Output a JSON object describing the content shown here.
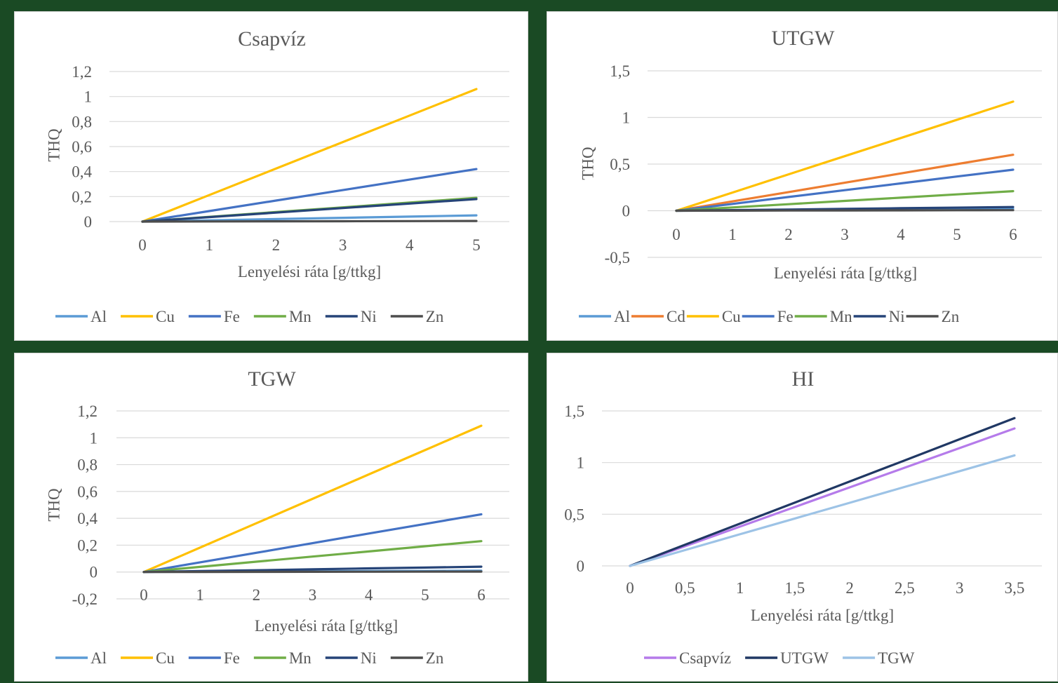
{
  "chart_data": [
    {
      "type": "line",
      "title": "Csapvíz",
      "xlabel": "Lenyelési ráta [g/ttkg]",
      "ylabel": "THQ",
      "categories": [
        "0",
        "1",
        "2",
        "3",
        "4",
        "5"
      ],
      "ylim": [
        0,
        1.2
      ],
      "yticks": [
        "0",
        "0,2",
        "0,4",
        "0,6",
        "0,8",
        "1",
        "1,2"
      ],
      "grid": true,
      "legend": "bottom",
      "series": [
        {
          "name": "Al",
          "color": "#5b9bd5",
          "values": [
            0,
            0.01,
            0.02,
            0.03,
            0.04,
            0.05
          ]
        },
        {
          "name": "Cu",
          "color": "#ffc000",
          "values": [
            0,
            0.212,
            0.424,
            0.636,
            0.848,
            1.06
          ]
        },
        {
          "name": "Fe",
          "color": "#4472c4",
          "values": [
            0,
            0.084,
            0.168,
            0.252,
            0.336,
            0.42
          ]
        },
        {
          "name": "Mn",
          "color": "#70ad47",
          "values": [
            0,
            0.038,
            0.076,
            0.114,
            0.152,
            0.19
          ]
        },
        {
          "name": "Ni",
          "color": "#264478",
          "values": [
            0,
            0.036,
            0.072,
            0.108,
            0.144,
            0.18
          ]
        },
        {
          "name": "Zn",
          "color": "#4d4d4d",
          "values": [
            0,
            0.001,
            0.002,
            0.003,
            0.004,
            0.005
          ]
        }
      ]
    },
    {
      "type": "line",
      "title": "UTGW",
      "xlabel": "Lenyelési ráta [g/ttkg]",
      "ylabel": "THQ",
      "categories": [
        "0",
        "1",
        "2",
        "3",
        "4",
        "5",
        "6"
      ],
      "ylim": [
        -0.5,
        1.5
      ],
      "yticks": [
        "-0,5",
        "0",
        "0,5",
        "1",
        "1,5"
      ],
      "grid": true,
      "legend": "bottom",
      "series": [
        {
          "name": "Al",
          "color": "#5b9bd5",
          "values": [
            0,
            0.003,
            0.007,
            0.01,
            0.013,
            0.017,
            0.02
          ]
        },
        {
          "name": "Cd",
          "color": "#ed7d31",
          "values": [
            0,
            0.1,
            0.2,
            0.3,
            0.4,
            0.5,
            0.6
          ]
        },
        {
          "name": "Cu",
          "color": "#ffc000",
          "values": [
            0,
            0.195,
            0.39,
            0.585,
            0.78,
            0.975,
            1.17
          ]
        },
        {
          "name": "Fe",
          "color": "#4472c4",
          "values": [
            0,
            0.073,
            0.147,
            0.22,
            0.293,
            0.367,
            0.44
          ]
        },
        {
          "name": "Mn",
          "color": "#70ad47",
          "values": [
            0,
            0.035,
            0.07,
            0.105,
            0.14,
            0.175,
            0.21
          ]
        },
        {
          "name": "Ni",
          "color": "#264478",
          "values": [
            0,
            0.007,
            0.013,
            0.02,
            0.027,
            0.033,
            0.04
          ]
        },
        {
          "name": "Zn",
          "color": "#4d4d4d",
          "values": [
            0,
            0.001,
            0.002,
            0.003,
            0.004,
            0.005,
            0.006
          ]
        }
      ]
    },
    {
      "type": "line",
      "title": "TGW",
      "xlabel": "Lenyelési ráta [g/ttkg]",
      "ylabel": "THQ",
      "categories": [
        "0",
        "1",
        "2",
        "3",
        "4",
        "5",
        "6"
      ],
      "ylim": [
        -0.2,
        1.2
      ],
      "yticks": [
        "-0,2",
        "0",
        "0,2",
        "0,4",
        "0,6",
        "0,8",
        "1",
        "1,2"
      ],
      "grid": true,
      "legend": "bottom",
      "series": [
        {
          "name": "Al",
          "color": "#5b9bd5",
          "values": [
            0,
            0.002,
            0.003,
            0.005,
            0.007,
            0.008,
            0.01
          ]
        },
        {
          "name": "Cu",
          "color": "#ffc000",
          "values": [
            0,
            0.182,
            0.363,
            0.545,
            0.727,
            0.908,
            1.09
          ]
        },
        {
          "name": "Fe",
          "color": "#4472c4",
          "values": [
            0,
            0.072,
            0.143,
            0.215,
            0.287,
            0.358,
            0.43
          ]
        },
        {
          "name": "Mn",
          "color": "#70ad47",
          "values": [
            0,
            0.038,
            0.077,
            0.115,
            0.153,
            0.192,
            0.23
          ]
        },
        {
          "name": "Ni",
          "color": "#264478",
          "values": [
            0,
            0.007,
            0.013,
            0.02,
            0.027,
            0.033,
            0.04
          ]
        },
        {
          "name": "Zn",
          "color": "#4d4d4d",
          "values": [
            0,
            0.0005,
            0.001,
            0.0015,
            0.002,
            0.0025,
            0.003
          ]
        }
      ]
    },
    {
      "type": "line",
      "title": "HI",
      "xlabel": "Lenyelési ráta [g/ttkg]",
      "ylabel": "",
      "categories": [
        "0",
        "0,5",
        "1",
        "1,5",
        "2",
        "2,5",
        "3",
        "3,5"
      ],
      "ylim": [
        0,
        1.5
      ],
      "yticks": [
        "0",
        "0,5",
        "1",
        "1,5"
      ],
      "grid": true,
      "legend": "bottom",
      "series": [
        {
          "name": "Csapvíz",
          "color": "#b57bea",
          "values": [
            0,
            0.19,
            0.38,
            0.57,
            0.76,
            0.95,
            1.14,
            1.33
          ]
        },
        {
          "name": "UTGW",
          "color": "#203864",
          "values": [
            0,
            0.204,
            0.409,
            0.613,
            0.817,
            1.021,
            1.226,
            1.43
          ]
        },
        {
          "name": "TGW",
          "color": "#9dc3e6",
          "values": [
            0,
            0.153,
            0.306,
            0.459,
            0.611,
            0.764,
            0.917,
            1.07
          ]
        }
      ]
    }
  ]
}
